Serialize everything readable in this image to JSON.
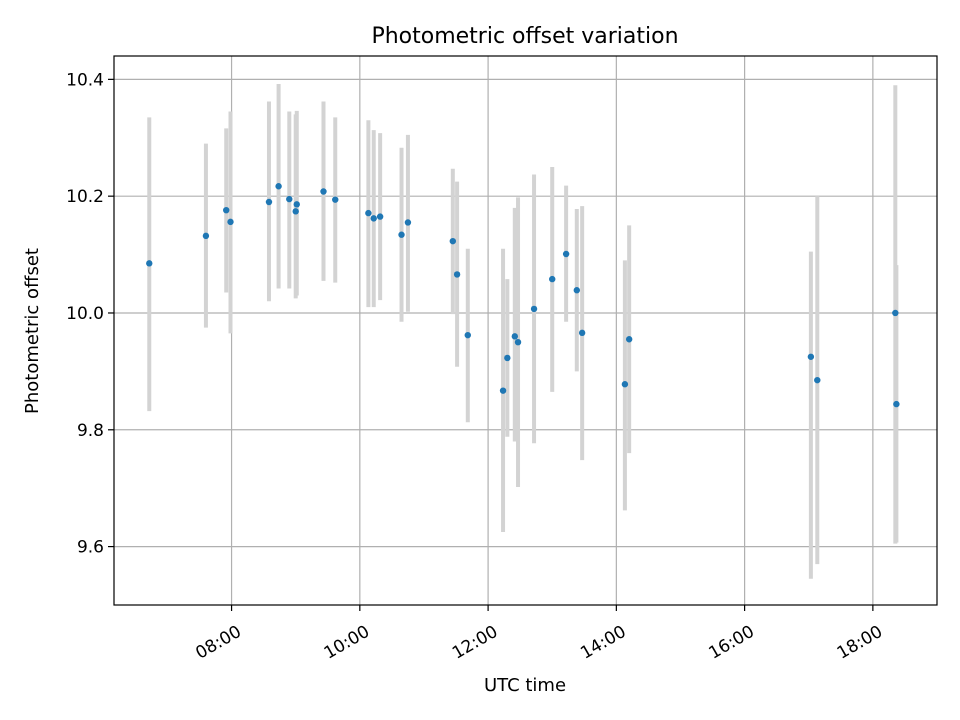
{
  "chart_data": {
    "type": "scatter",
    "title": "Photometric offset variation",
    "xlabel": "UTC time",
    "ylabel": "Photometric offset",
    "xlim": [
      "06:10",
      "19:00"
    ],
    "ylim": [
      9.5,
      10.44
    ],
    "x_ticks": [
      "08:00",
      "10:00",
      "12:00",
      "14:00",
      "16:00",
      "18:00"
    ],
    "y_ticks": [
      9.6,
      9.8,
      10.0,
      10.2,
      10.4
    ],
    "grid": true,
    "colors": {
      "point": "#1f77b4",
      "error_bar": "#d3d3d3"
    },
    "points": [
      {
        "time": "06:43",
        "y": 10.085,
        "err_low": 9.832,
        "err_high": 10.335
      },
      {
        "time": "07:36",
        "y": 10.132,
        "err_low": 9.975,
        "err_high": 10.29
      },
      {
        "time": "07:55",
        "y": 10.176,
        "err_low": 10.035,
        "err_high": 10.316
      },
      {
        "time": "07:59",
        "y": 10.156,
        "err_low": 9.965,
        "err_high": 10.345
      },
      {
        "time": "08:35",
        "y": 10.19,
        "err_low": 10.02,
        "err_high": 10.362
      },
      {
        "time": "08:44",
        "y": 10.217,
        "err_low": 10.042,
        "err_high": 10.392
      },
      {
        "time": "08:54",
        "y": 10.195,
        "err_low": 10.042,
        "err_high": 10.345
      },
      {
        "time": "09:00",
        "y": 10.174,
        "err_low": 10.025,
        "err_high": 10.34
      },
      {
        "time": "09:01",
        "y": 10.186,
        "err_low": 10.03,
        "err_high": 10.346
      },
      {
        "time": "09:26",
        "y": 10.208,
        "err_low": 10.055,
        "err_high": 10.362
      },
      {
        "time": "09:37",
        "y": 10.194,
        "err_low": 10.052,
        "err_high": 10.335
      },
      {
        "time": "10:08",
        "y": 10.171,
        "err_low": 10.01,
        "err_high": 10.33
      },
      {
        "time": "10:13",
        "y": 10.162,
        "err_low": 10.01,
        "err_high": 10.313
      },
      {
        "time": "10:19",
        "y": 10.165,
        "err_low": 10.022,
        "err_high": 10.308
      },
      {
        "time": "10:39",
        "y": 10.134,
        "err_low": 9.985,
        "err_high": 10.283
      },
      {
        "time": "10:45",
        "y": 10.155,
        "err_low": 10.002,
        "err_high": 10.305
      },
      {
        "time": "11:27",
        "y": 10.123,
        "err_low": 9.998,
        "err_high": 10.247
      },
      {
        "time": "11:31",
        "y": 10.066,
        "err_low": 9.908,
        "err_high": 10.225
      },
      {
        "time": "11:41",
        "y": 9.962,
        "err_low": 9.813,
        "err_high": 10.11
      },
      {
        "time": "12:14",
        "y": 9.867,
        "err_low": 9.625,
        "err_high": 10.11
      },
      {
        "time": "12:18",
        "y": 9.923,
        "err_low": 9.788,
        "err_high": 10.058
      },
      {
        "time": "12:25",
        "y": 9.96,
        "err_low": 9.78,
        "err_high": 10.18
      },
      {
        "time": "12:28",
        "y": 9.95,
        "err_low": 9.702,
        "err_high": 10.198
      },
      {
        "time": "12:43",
        "y": 10.007,
        "err_low": 9.777,
        "err_high": 10.237
      },
      {
        "time": "13:00",
        "y": 10.058,
        "err_low": 9.865,
        "err_high": 10.25
      },
      {
        "time": "13:13",
        "y": 10.101,
        "err_low": 9.985,
        "err_high": 10.218
      },
      {
        "time": "13:23",
        "y": 10.039,
        "err_low": 9.9,
        "err_high": 10.178
      },
      {
        "time": "13:28",
        "y": 9.966,
        "err_low": 9.748,
        "err_high": 10.183
      },
      {
        "time": "14:08",
        "y": 9.878,
        "err_low": 9.662,
        "err_high": 10.09
      },
      {
        "time": "14:12",
        "y": 9.955,
        "err_low": 9.76,
        "err_high": 10.15
      },
      {
        "time": "17:02",
        "y": 9.925,
        "err_low": 9.545,
        "err_high": 10.105
      },
      {
        "time": "17:08",
        "y": 9.885,
        "err_low": 9.57,
        "err_high": 10.2
      },
      {
        "time": "18:21",
        "y": 10.0,
        "err_low": 9.605,
        "err_high": 10.39
      },
      {
        "time": "18:22",
        "y": 9.844,
        "err_low": 9.607,
        "err_high": 10.082
      }
    ]
  }
}
